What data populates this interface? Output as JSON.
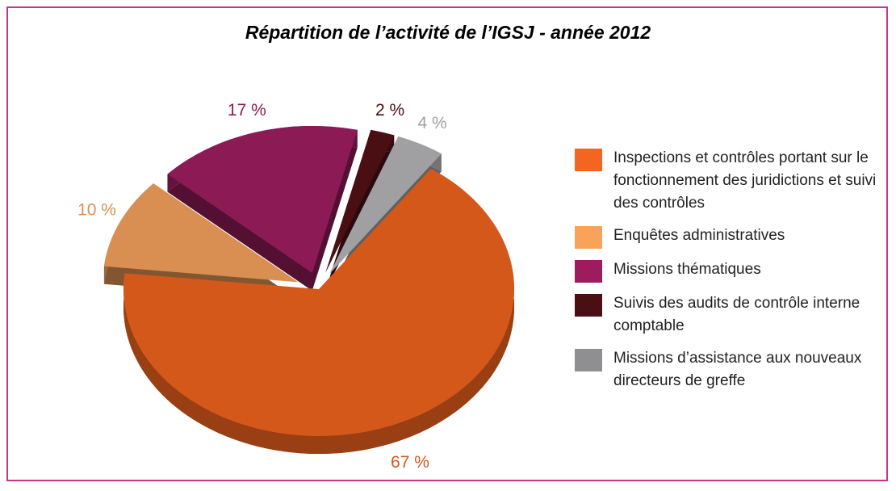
{
  "chart_data": {
    "type": "pie",
    "title": "Répartition de l’activité de l’IGSJ - année 2012",
    "categories": [
      "Inspections et contrôles portant sur le fonctionnement des juridictions et suivi des contrôles",
      "Enquêtes administratives",
      "Missions thématiques",
      "Suivis des audits de contrôle interne comptable",
      "Missions d’assistance aux nouveaux directeurs de greffe"
    ],
    "values": [
      67,
      10,
      17,
      2,
      4
    ],
    "value_labels": [
      "67 %",
      "10 %",
      "17 %",
      "2 %",
      "4 %"
    ],
    "colors": [
      "#d4581a",
      "#d98f52",
      "#8b1a55",
      "#4a0f12",
      "#a0a0a3"
    ],
    "legend_colors": [
      "#f26522",
      "#f7a35c",
      "#9e1b5e",
      "#4a0f12",
      "#8f8f92"
    ]
  }
}
